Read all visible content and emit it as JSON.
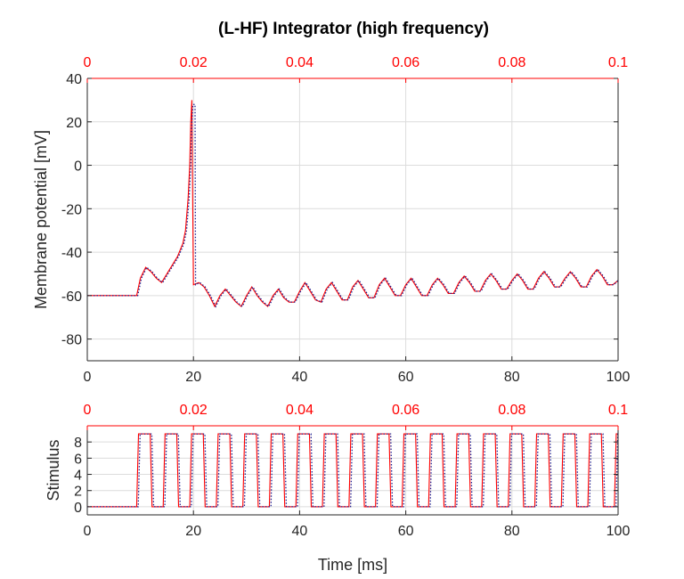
{
  "chart_data": [
    {
      "type": "line",
      "title": "(L-HF) Integrator (high frequency)",
      "ylabel": "Membrane potential [mV]",
      "xlabel": "",
      "xlim": [
        0,
        100
      ],
      "ylim": [
        -90,
        40
      ],
      "xticks": [
        "0",
        "20",
        "40",
        "60",
        "80",
        "100"
      ],
      "yticks": [
        "40",
        "20",
        "0",
        "-20",
        "-40",
        "-60",
        "-80"
      ],
      "top_axis": {
        "xlim": [
          0,
          0.1
        ],
        "ticks": [
          "0",
          "0.02",
          "0.04",
          "0.06",
          "0.08",
          "0.1"
        ],
        "color": "#ff0000"
      },
      "grid": true,
      "series": [
        {
          "color": "#ff0000",
          "style": "solid",
          "x": [
            0,
            9.3,
            10,
            11,
            12,
            13,
            14,
            15,
            16,
            17,
            18,
            18.5,
            19,
            19.3,
            19.5,
            19.7,
            19.8,
            20,
            21,
            22,
            23,
            24,
            25,
            26,
            27,
            28,
            29,
            30,
            31,
            32,
            33,
            34,
            35,
            36,
            37,
            38,
            39,
            40,
            41,
            42,
            43,
            44,
            45,
            46,
            47,
            48,
            49,
            50,
            51,
            52,
            53,
            54,
            55,
            56,
            57,
            58,
            59,
            60,
            61,
            62,
            63,
            64,
            65,
            66,
            67,
            68,
            69,
            70,
            71,
            72,
            73,
            74,
            75,
            76,
            77,
            78,
            79,
            80,
            81,
            82,
            83,
            84,
            85,
            86,
            87,
            88,
            89,
            90,
            91,
            92,
            93,
            94,
            95,
            96,
            97,
            98,
            99,
            100
          ],
          "y": [
            -60,
            -60,
            -52,
            -47,
            -49,
            -52,
            -54,
            -50,
            -46,
            -42,
            -36,
            -30,
            -15,
            0,
            20,
            30,
            0,
            -55,
            -54,
            -56,
            -60,
            -65,
            -60,
            -57,
            -60,
            -63,
            -65,
            -60,
            -56,
            -60,
            -63,
            -65,
            -60,
            -57,
            -61,
            -63,
            -63,
            -58,
            -54,
            -58,
            -62,
            -63,
            -57,
            -54,
            -58,
            -62,
            -62,
            -56,
            -53,
            -57,
            -61,
            -61,
            -55,
            -52,
            -56,
            -60,
            -60,
            -55,
            -52,
            -56,
            -60,
            -60,
            -55,
            -52,
            -55,
            -59,
            -59,
            -54,
            -51,
            -54,
            -58,
            -58,
            -53,
            -50,
            -53,
            -57,
            -57,
            -53,
            -50,
            -53,
            -57,
            -57,
            -52,
            -49,
            -52,
            -56,
            -56,
            -52,
            -49,
            -52,
            -56,
            -56,
            -51,
            -48,
            -51,
            -55,
            -55,
            -53
          ]
        },
        {
          "color": "#1f1f8f",
          "style": "dotted",
          "x": [
            0,
            9.5,
            10.2,
            11.2,
            12.2,
            13.2,
            14.2,
            15.2,
            16.2,
            17.2,
            18.2,
            18.7,
            19.2,
            19.5,
            19.7,
            19.9,
            20.3,
            20.4,
            21.2,
            22.2,
            23.2,
            24.2,
            25.2,
            26.2,
            27.2,
            28.2,
            29.2,
            30.2,
            31.2,
            32.2,
            33.2,
            34.2,
            35.2,
            36.2,
            37.2,
            38.2,
            39.2,
            40.2,
            41.2,
            42.2,
            43.2,
            44.2,
            45.2,
            46.2,
            47.2,
            48.2,
            49.2,
            50.2,
            51.2,
            52.2,
            53.2,
            54.2,
            55.2,
            56.2,
            57.2,
            58.2,
            59.2,
            60.2,
            61.2,
            62.2,
            63.2,
            64.2,
            65.2,
            66.2,
            67.2,
            68.2,
            69.2,
            70.2,
            71.2,
            72.2,
            73.2,
            74.2,
            75.2,
            76.2,
            77.2,
            78.2,
            79.2,
            80.2,
            81.2,
            82.2,
            83.2,
            84.2,
            85.2,
            86.2,
            87.2,
            88.2,
            89.2,
            90.2,
            91.2,
            92.2,
            93.2,
            94.2,
            95.2,
            96.2,
            97.2,
            98.2,
            99.2,
            100
          ],
          "y": [
            -60,
            -60,
            -52,
            -47,
            -49,
            -52,
            -54,
            -50,
            -46,
            -42,
            -36,
            -30,
            -15,
            0,
            20,
            28,
            28,
            -55,
            -54,
            -56,
            -60,
            -65,
            -60,
            -57,
            -60,
            -63,
            -65,
            -60,
            -56,
            -60,
            -63,
            -65,
            -60,
            -57,
            -61,
            -63,
            -63,
            -58,
            -54,
            -58,
            -62,
            -63,
            -57,
            -54,
            -58,
            -62,
            -62,
            -56,
            -53,
            -57,
            -61,
            -61,
            -55,
            -52,
            -56,
            -60,
            -60,
            -55,
            -52,
            -56,
            -60,
            -60,
            -55,
            -52,
            -55,
            -59,
            -59,
            -54,
            -51,
            -54,
            -58,
            -58,
            -53,
            -50,
            -53,
            -57,
            -57,
            -53,
            -50,
            -53,
            -57,
            -57,
            -52,
            -49,
            -52,
            -56,
            -56,
            -52,
            -49,
            -52,
            -56,
            -56,
            -51,
            -48,
            -51,
            -55,
            -55,
            -53
          ]
        }
      ]
    },
    {
      "type": "line",
      "title": "",
      "ylabel": "Stimulus",
      "xlabel": "Time [ms]",
      "xlim": [
        0,
        100
      ],
      "ylim": [
        -1,
        10
      ],
      "xticks": [
        "0",
        "20",
        "40",
        "60",
        "80",
        "100"
      ],
      "yticks": [
        "8",
        "6",
        "4",
        "2",
        "0"
      ],
      "top_axis": {
        "xlim": [
          0,
          0.1
        ],
        "ticks": [
          "0",
          "0.02",
          "0.04",
          "0.06",
          "0.08",
          "0.1"
        ],
        "color": "#ff0000"
      },
      "grid": true,
      "pulse_train": {
        "start": 9.3,
        "period": 5,
        "high_width": 2.2,
        "ramp": 0.7,
        "low": 0,
        "high": 9,
        "end": 100
      },
      "series": [
        {
          "color": "#ff0000",
          "style": "solid",
          "offset": 0
        },
        {
          "color": "#1f1f8f",
          "style": "dotted",
          "offset": 0.3
        }
      ]
    }
  ]
}
